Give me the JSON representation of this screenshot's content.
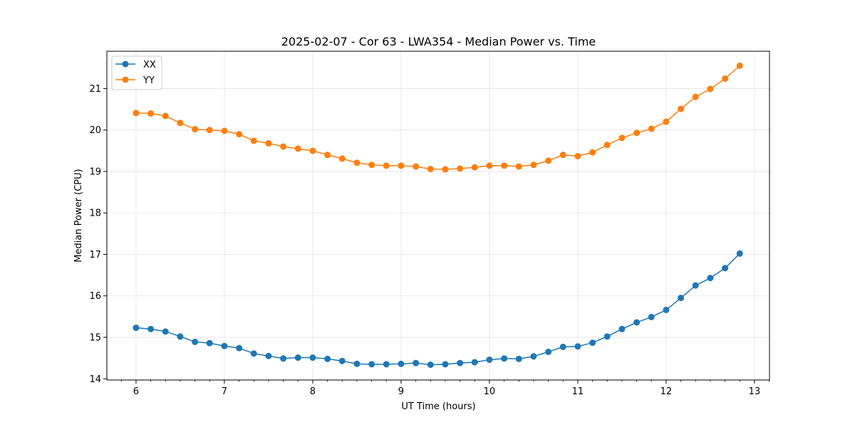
{
  "chart_data": {
    "type": "line",
    "title": "2025-02-07 - Cor 63 - LWA354 - Median Power vs. Time",
    "xlabel": "UT Time (hours)",
    "ylabel": "Median Power (CPU)",
    "xlim": [
      5.67,
      13.17
    ],
    "ylim": [
      13.97,
      21.9
    ],
    "x_ticks": [
      6,
      7,
      8,
      9,
      10,
      11,
      12,
      13
    ],
    "y_ticks": [
      14,
      15,
      16,
      17,
      18,
      19,
      20,
      21
    ],
    "grid": true,
    "legend_position": "upper-left",
    "x": [
      6.0,
      6.167,
      6.333,
      6.5,
      6.667,
      6.833,
      7.0,
      7.167,
      7.333,
      7.5,
      7.667,
      7.833,
      8.0,
      8.167,
      8.333,
      8.5,
      8.667,
      8.833,
      9.0,
      9.167,
      9.333,
      9.5,
      9.667,
      9.833,
      10.0,
      10.167,
      10.333,
      10.5,
      10.667,
      10.833,
      11.0,
      11.167,
      11.333,
      11.5,
      11.667,
      11.833,
      12.0,
      12.167,
      12.333,
      12.5,
      12.667,
      12.833
    ],
    "series": [
      {
        "name": "XX",
        "color": "#1f77b4",
        "values": [
          15.23,
          15.2,
          15.14,
          15.02,
          14.89,
          14.86,
          14.79,
          14.74,
          14.61,
          14.55,
          14.49,
          14.51,
          14.51,
          14.48,
          14.43,
          14.36,
          14.35,
          14.35,
          14.36,
          14.38,
          14.34,
          14.35,
          14.38,
          14.4,
          14.46,
          14.49,
          14.48,
          14.54,
          14.65,
          14.77,
          14.78,
          14.87,
          15.02,
          15.2,
          15.36,
          15.49,
          15.66,
          15.95,
          16.25,
          16.43,
          16.67,
          17.02
        ]
      },
      {
        "name": "YY",
        "color": "#ff7f0e",
        "values": [
          20.41,
          20.4,
          20.34,
          20.17,
          20.02,
          20.0,
          19.98,
          19.9,
          19.74,
          19.68,
          19.6,
          19.55,
          19.5,
          19.4,
          19.31,
          19.21,
          19.16,
          19.14,
          19.14,
          19.12,
          19.06,
          19.05,
          19.07,
          19.1,
          19.14,
          19.14,
          19.12,
          19.16,
          19.26,
          19.4,
          19.37,
          19.46,
          19.64,
          19.81,
          19.93,
          20.03,
          20.2,
          20.51,
          20.8,
          20.99,
          21.24,
          21.55
        ]
      }
    ]
  }
}
